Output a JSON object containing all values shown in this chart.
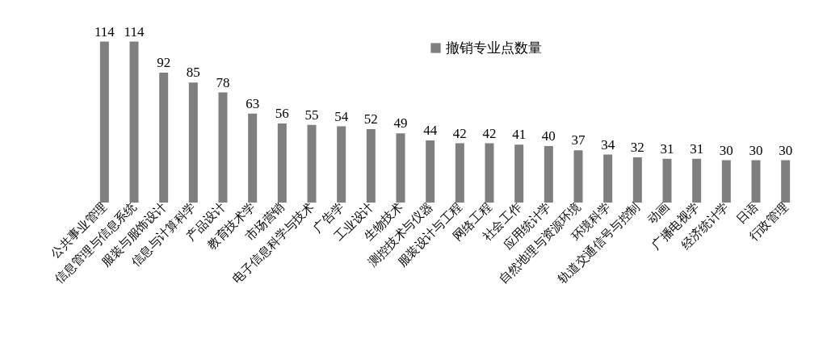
{
  "chart_data": {
    "type": "bar",
    "categories": [
      "公共事业管理",
      "信息管理与信息系统",
      "服装与服饰设计",
      "信息与计算科学",
      "产品设计",
      "教育技术学",
      "市场营销",
      "电子信息科学与技术",
      "广告学",
      "工业设计",
      "生物技术",
      "测控技术与仪器",
      "服装设计与工程",
      "网络工程",
      "社会工作",
      "应用统计学",
      "自然地理与资源环境",
      "环境科学",
      "轨道交通信号与控制",
      "动画",
      "广播电视学",
      "经济统计学",
      "日语",
      "行政管理"
    ],
    "series": [
      {
        "name": "撤销专业点数量",
        "color": "#7f7f7f",
        "values": [
          114,
          114,
          92,
          85,
          78,
          63,
          56,
          55,
          54,
          52,
          49,
          44,
          42,
          42,
          41,
          40,
          37,
          34,
          32,
          31,
          31,
          30,
          30,
          30
        ]
      }
    ],
    "data_labels": true,
    "legend": "top"
  }
}
